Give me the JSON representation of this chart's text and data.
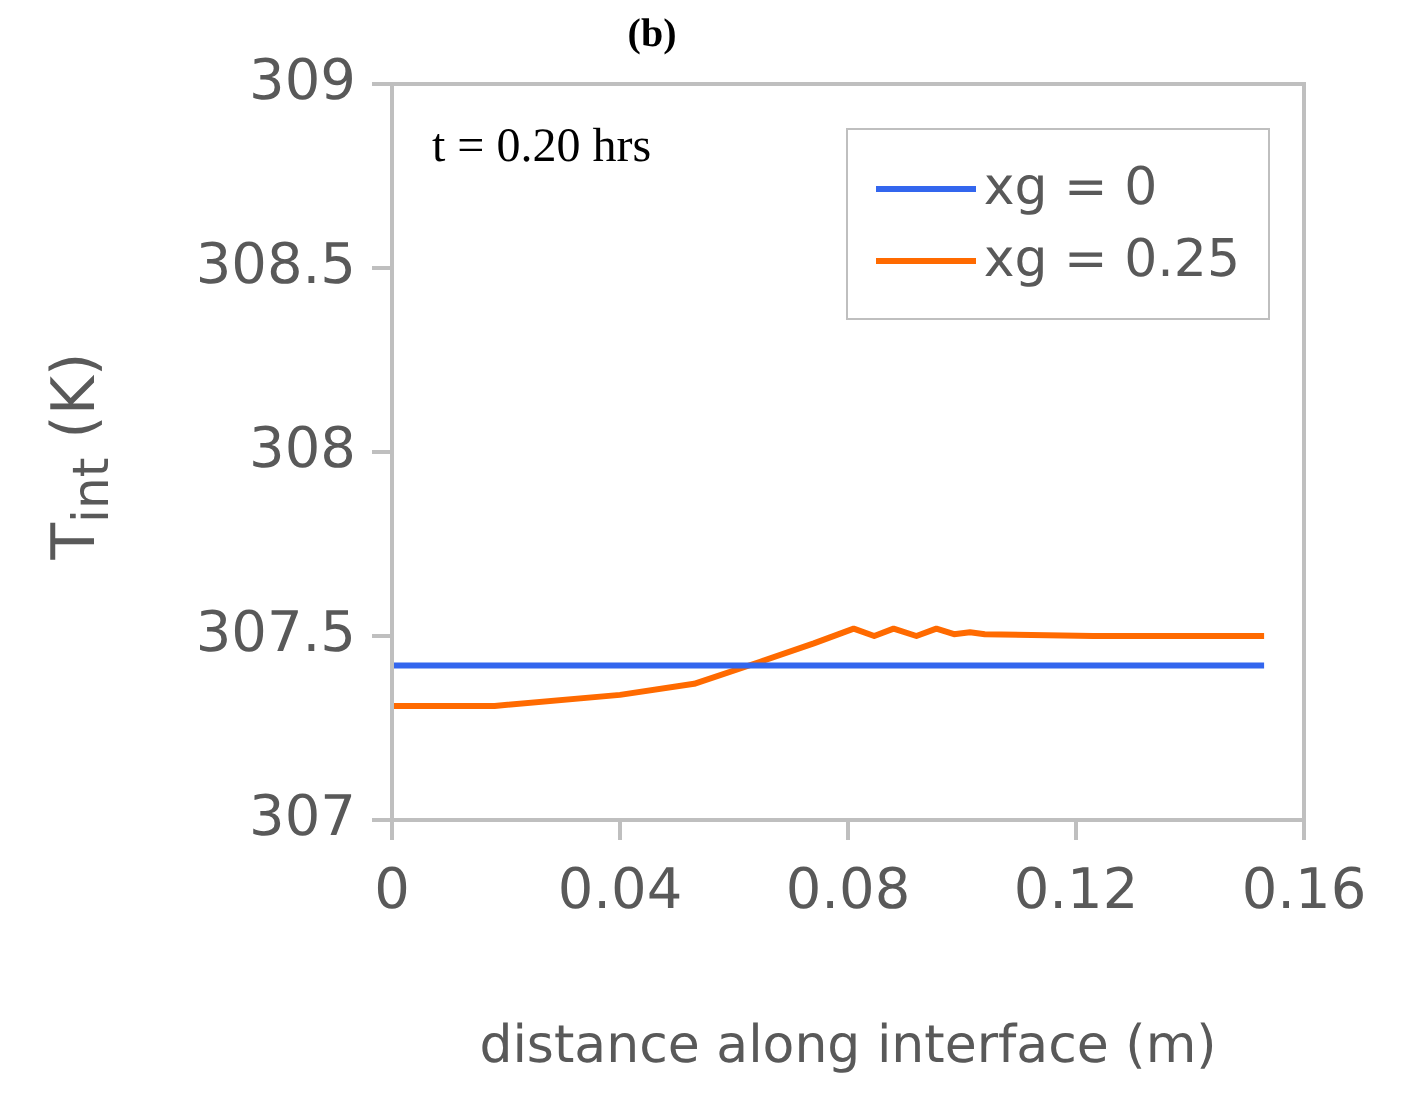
{
  "chart_data": {
    "type": "line",
    "title": "(b)",
    "xlabel": "distance along interface (m)",
    "ylabel": "T$_{int}$ (K)",
    "annotations": [
      "t = 0.20 hrs"
    ],
    "xlim": [
      0,
      0.16
    ],
    "xticks": [
      0,
      0.04,
      0.08,
      0.12,
      0.16
    ],
    "ylim": [
      307,
      309
    ],
    "yticks": [
      307,
      307.5,
      308,
      308.5,
      309
    ],
    "grid": false,
    "legend": "top right",
    "marker": "none",
    "line_style": "solid",
    "series": [
      {
        "name": "xg = 0",
        "color": "#3366ee",
        "x": [
          0,
          0.153
        ],
        "values": [
          307.42,
          307.42
        ]
      },
      {
        "name": "xg = 0.25",
        "color": "#ff6a00",
        "x": [
          0,
          0.018,
          0.04,
          0.053,
          0.0646,
          0.074,
          0.081,
          0.0846,
          0.088,
          0.092,
          0.0955,
          0.0986,
          0.1014,
          0.104,
          0.123,
          0.153
        ],
        "values": [
          307.31,
          307.31,
          307.34,
          307.37,
          307.43,
          307.48,
          307.52,
          307.5,
          307.52,
          307.5,
          307.52,
          307.505,
          307.51,
          307.505,
          307.5,
          307.5
        ]
      }
    ]
  }
}
